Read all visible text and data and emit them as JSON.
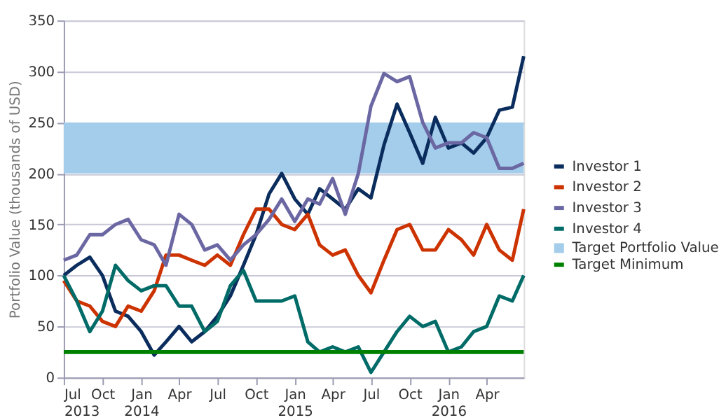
{
  "chart_data": {
    "type": "line",
    "ylabel": "Portfolio Value (thousands of USD)",
    "x": [
      "2013-07-01",
      "2013-08-01",
      "2013-09-01",
      "2013-10-01",
      "2013-11-01",
      "2013-12-01",
      "2014-01-01",
      "2014-02-01",
      "2014-03-01",
      "2014-04-01",
      "2014-05-01",
      "2014-06-01",
      "2014-07-01",
      "2014-08-01",
      "2014-09-01",
      "2014-10-01",
      "2014-11-01",
      "2014-12-01",
      "2015-01-01",
      "2015-02-01",
      "2015-03-01",
      "2015-04-01",
      "2015-05-01",
      "2015-06-01",
      "2015-07-01",
      "2015-08-01",
      "2015-09-01",
      "2015-10-01",
      "2015-11-01",
      "2015-12-01",
      "2016-01-01",
      "2016-02-01",
      "2016-03-01",
      "2016-04-01",
      "2016-05-01",
      "2016-06-01",
      "2016-06-28"
    ],
    "series": [
      {
        "name": "Investor 1",
        "color": "#0b2d5e",
        "values": [
          100,
          110,
          118,
          100,
          65,
          60,
          45,
          22,
          35,
          50,
          35,
          45,
          60,
          80,
          110,
          140,
          180,
          200,
          175,
          160,
          185,
          175,
          165,
          185,
          176,
          228,
          268,
          240,
          210,
          255,
          225,
          230,
          220,
          235,
          262,
          265,
          315
        ]
      },
      {
        "name": "Investor 2",
        "color": "#cc3300",
        "values": [
          95,
          75,
          70,
          55,
          50,
          70,
          65,
          85,
          120,
          120,
          115,
          110,
          120,
          110,
          140,
          165,
          165,
          150,
          145,
          160,
          130,
          120,
          125,
          100,
          83,
          115,
          145,
          150,
          125,
          125,
          145,
          135,
          120,
          150,
          125,
          115,
          165
        ]
      },
      {
        "name": "Investor 3",
        "color": "#6b67a3",
        "values": [
          115,
          120,
          140,
          140,
          150,
          155,
          135,
          130,
          110,
          160,
          150,
          125,
          130,
          115,
          130,
          140,
          155,
          175,
          153,
          175,
          170,
          195,
          160,
          200,
          266,
          298,
          290,
          295,
          250,
          225,
          230,
          230,
          240,
          235,
          205,
          205,
          210
        ]
      },
      {
        "name": "Investor 4",
        "color": "#006b67",
        "values": [
          100,
          75,
          45,
          65,
          110,
          95,
          85,
          90,
          90,
          70,
          70,
          45,
          55,
          90,
          105,
          75,
          75,
          75,
          80,
          35,
          25,
          30,
          25,
          30,
          5,
          25,
          45,
          60,
          50,
          55,
          25,
          30,
          45,
          50,
          80,
          75,
          100
        ]
      }
    ],
    "xlim": [
      "2013-07-01",
      "2016-06-28"
    ],
    "xticks": [
      {
        "value": "2013-07-01",
        "label": "Jul 2013"
      },
      {
        "value": "2013-10-01",
        "label": "Oct"
      },
      {
        "value": "2014-01-01",
        "label": "Jan 2014"
      },
      {
        "value": "2014-04-01",
        "label": "Apr"
      },
      {
        "value": "2014-07-01",
        "label": "Jul"
      },
      {
        "value": "2014-10-01",
        "label": "Oct"
      },
      {
        "value": "2015-01-01",
        "label": "Jan 2015"
      },
      {
        "value": "2015-04-01",
        "label": "Apr"
      },
      {
        "value": "2015-07-01",
        "label": "Jul"
      },
      {
        "value": "2015-10-01",
        "label": "Oct"
      },
      {
        "value": "2016-01-01",
        "label": "Jan 2016"
      },
      {
        "value": "2016-04-01",
        "label": "Apr"
      }
    ],
    "ylim": [
      0,
      350
    ],
    "yticks": [
      0,
      50,
      100,
      150,
      200,
      250,
      300,
      350
    ],
    "bands": [
      {
        "axis": "y",
        "from": 200,
        "to": 250,
        "label": "Target Portfolio Value",
        "color": "#a3cdea"
      }
    ],
    "ref_lines": [
      {
        "axis": "y",
        "value": 25,
        "label": "Target Minimum",
        "color": "#008000"
      }
    ],
    "grid": "y",
    "legend": "right",
    "marker": "none",
    "line_style": "solid"
  }
}
